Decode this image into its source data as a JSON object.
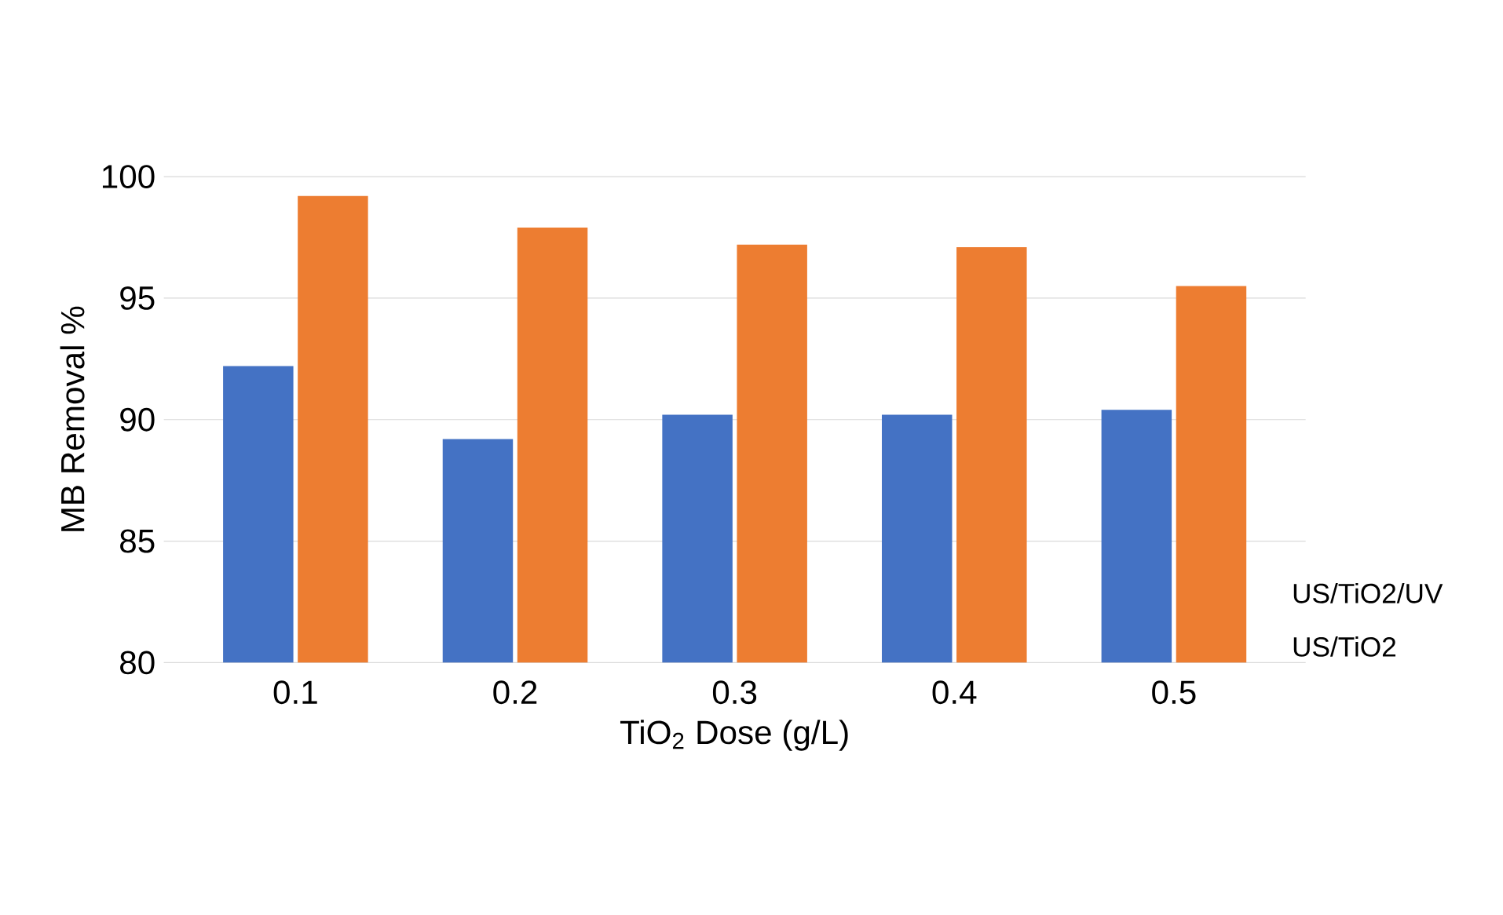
{
  "chart_data": {
    "type": "bar",
    "xlabel": "TiO$_{2}$ Dose (g/L)",
    "ylabel": "MB Removal %",
    "categories": [
      "0.1",
      "0.2",
      "0.3",
      "0.4",
      "0.5"
    ],
    "series": [
      {
        "name": "US/TiO2",
        "color": "#4472c4",
        "values": [
          92.2,
          89.2,
          90.2,
          90.2,
          90.4
        ]
      },
      {
        "name": "US/TiO2/UV",
        "color": "#ed7d31",
        "values": [
          99.2,
          97.9,
          97.2,
          97.1,
          95.5
        ]
      }
    ],
    "ylim": [
      80,
      100
    ],
    "yticks": [
      80,
      85,
      90,
      95,
      100
    ],
    "grid": "y"
  }
}
